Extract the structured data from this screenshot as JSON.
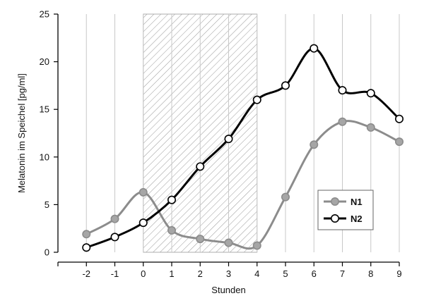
{
  "chart_data": {
    "type": "line",
    "title": "",
    "xlabel": "Stunden",
    "ylabel": "Melatonin im Speichel [pg/ml]",
    "x": [
      -2,
      -1,
      0,
      1,
      2,
      3,
      4,
      5,
      6,
      7,
      8,
      9
    ],
    "xlim": [
      -3,
      9
    ],
    "ylim": [
      0,
      25
    ],
    "xticks": [
      -2,
      -1,
      0,
      1,
      2,
      3,
      4,
      5,
      6,
      7,
      8,
      9
    ],
    "yticks": [
      0,
      5,
      10,
      15,
      20,
      25
    ],
    "grid": "vertical",
    "shaded_region": {
      "from": 0,
      "to": 4,
      "pattern": "diagonal-hatch"
    },
    "legend_position": "bottom-right",
    "series": [
      {
        "name": "N1",
        "color": "#8c8c8c",
        "marker_fill": "#a6a6a6",
        "values": [
          1.9,
          3.5,
          6.3,
          2.3,
          1.4,
          1.0,
          0.7,
          5.8,
          11.3,
          13.7,
          13.1,
          11.6
        ]
      },
      {
        "name": "N2",
        "color": "#000000",
        "marker_fill": "#ffffff",
        "values": [
          0.5,
          1.6,
          3.1,
          5.5,
          9.0,
          11.9,
          16.0,
          17.5,
          21.4,
          17.0,
          16.7,
          14.0
        ]
      }
    ]
  }
}
